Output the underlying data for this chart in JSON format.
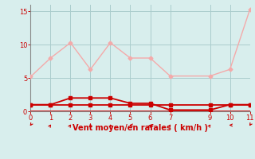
{
  "x": [
    0,
    1,
    2,
    3,
    4,
    5,
    6,
    7,
    9,
    10,
    11
  ],
  "line1_y": [
    5.2,
    8.0,
    10.3,
    6.3,
    10.3,
    8.0,
    8.0,
    5.3,
    5.3,
    6.3,
    15.3
  ],
  "line2_y": [
    1.0,
    1.0,
    1.0,
    1.0,
    1.0,
    1.0,
    1.0,
    1.0,
    1.0,
    1.0,
    1.0
  ],
  "line3_y": [
    1.0,
    1.0,
    2.0,
    2.0,
    2.0,
    1.2,
    1.2,
    0.2,
    0.2,
    1.0,
    1.0
  ],
  "xlim": [
    0,
    11
  ],
  "ylim": [
    0,
    16
  ],
  "yticks": [
    0,
    5,
    10,
    15
  ],
  "xticks": [
    0,
    1,
    2,
    3,
    4,
    5,
    6,
    7,
    9,
    10,
    11
  ],
  "xlabel": "Vent moyen/en rafales ( km/h )",
  "line1_color": "#f4aaaa",
  "line2_color": "#cc0000",
  "line3_color": "#cc0000",
  "bg_color": "#d8eeed",
  "grid_color": "#aacccc",
  "axis_color": "#cc0000",
  "label_color": "#cc0000",
  "tick_color": "#cc0000"
}
